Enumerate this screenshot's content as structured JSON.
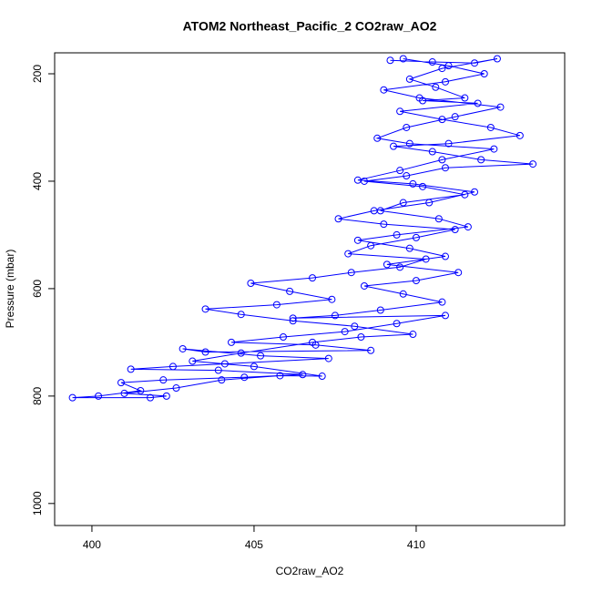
{
  "chart_data": {
    "type": "scatter",
    "title": "ATOM2 Northeast_Pacific_2 CO2raw_AO2",
    "x_label": "CO2raw_AO2",
    "y_label": "Pressure (mbar)",
    "color": "#0000ff",
    "connect_points": true,
    "xlim": [
      398.85,
      414.58
    ],
    "ylim": [
      1041,
      161
    ],
    "xticks": [
      400,
      405,
      410
    ],
    "yticks": [
      200,
      400,
      600,
      800,
      1000
    ],
    "x": [
      409.2,
      410.5,
      411.8,
      412.5,
      410.8,
      409.8,
      410.6,
      411.5,
      410.2,
      411.9,
      409.5,
      410.8,
      412.3,
      413.2,
      411.0,
      409.3,
      410.5,
      412.0,
      413.6,
      410.9,
      409.7,
      408.4,
      410.2,
      411.5,
      409.6,
      408.9,
      410.7,
      411.6,
      409.4,
      408.2,
      409.8,
      410.9,
      409.1,
      411.3,
      410.0,
      408.4,
      409.6,
      410.8,
      408.9,
      407.5,
      406.2,
      410.9,
      409.4,
      407.8,
      405.9,
      404.3,
      406.9,
      408.6,
      403.5,
      402.8,
      405.2,
      407.3,
      404.1,
      402.5,
      401.2,
      403.9,
      406.5,
      404.7,
      402.2,
      400.9,
      401.5,
      400.2,
      399.4,
      401.8,
      402.3,
      401.0,
      402.6,
      404.0,
      405.8,
      407.1,
      405.0,
      403.1,
      404.6,
      406.8,
      408.3,
      409.9,
      408.1,
      406.2,
      404.6,
      403.5,
      405.7,
      407.4,
      406.1,
      404.9,
      406.8,
      408.0,
      409.5,
      410.3,
      407.9,
      408.6,
      410.0,
      411.2,
      409.0,
      407.6,
      408.7,
      410.4,
      411.8,
      409.9,
      408.2,
      409.5,
      410.8,
      412.4,
      409.8,
      408.8,
      409.7,
      411.2,
      412.6,
      410.1,
      409.0,
      410.9,
      412.1,
      411.0,
      409.6
    ],
    "values": [
      175,
      178,
      180,
      172,
      190,
      210,
      225,
      245,
      250,
      255,
      270,
      285,
      300,
      315,
      330,
      335,
      345,
      360,
      368,
      375,
      390,
      400,
      410,
      425,
      440,
      455,
      470,
      485,
      500,
      510,
      525,
      540,
      555,
      570,
      585,
      595,
      610,
      625,
      640,
      650,
      655,
      650,
      665,
      680,
      690,
      700,
      705,
      715,
      718,
      712,
      725,
      730,
      740,
      745,
      750,
      752,
      760,
      765,
      770,
      775,
      790,
      800,
      803,
      803,
      800,
      795,
      785,
      770,
      762,
      763,
      745,
      735,
      720,
      700,
      690,
      685,
      670,
      660,
      648,
      638,
      630,
      620,
      605,
      590,
      580,
      570,
      560,
      545,
      535,
      520,
      505,
      490,
      480,
      470,
      455,
      440,
      420,
      405,
      398,
      380,
      360,
      340,
      330,
      320,
      300,
      280,
      262,
      245,
      230,
      215,
      200,
      185,
      172
    ]
  }
}
